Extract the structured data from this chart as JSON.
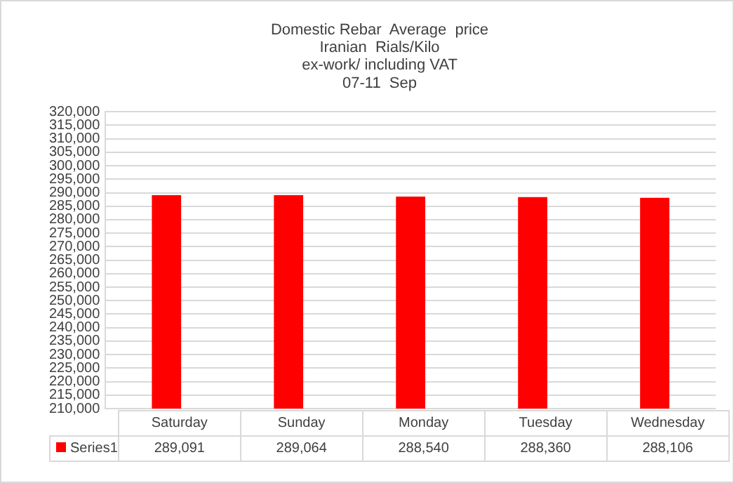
{
  "chart_data": {
    "type": "bar",
    "title": "Domestic Rebar  Average  price\nIranian  Rials/Kilo\nex-work/ including VAT\n07-11  Sep",
    "categories": [
      "Saturday",
      "Sunday",
      "Monday",
      "Tuesday",
      "Wednesday"
    ],
    "series": [
      {
        "name": "Series1",
        "color": "#ff0000",
        "values": [
          289091,
          289064,
          288540,
          288360,
          288106
        ],
        "value_labels": [
          "289,091",
          "289,064",
          "288,540",
          "288,360",
          "288,106"
        ]
      }
    ],
    "ylim": [
      210000,
      320000
    ],
    "yticks": [
      {
        "value": 210000,
        "label": "210,000"
      },
      {
        "value": 215000,
        "label": "215,000"
      },
      {
        "value": 220000,
        "label": "220,000"
      },
      {
        "value": 225000,
        "label": "225,000"
      },
      {
        "value": 230000,
        "label": "230,000"
      },
      {
        "value": 235000,
        "label": "235,000"
      },
      {
        "value": 240000,
        "label": "240,000"
      },
      {
        "value": 245000,
        "label": "245,000"
      },
      {
        "value": 250000,
        "label": "250,000"
      },
      {
        "value": 255000,
        "label": "255,000"
      },
      {
        "value": 260000,
        "label": "260,000"
      },
      {
        "value": 265000,
        "label": "265,000"
      },
      {
        "value": 270000,
        "label": "270,000"
      },
      {
        "value": 275000,
        "label": "275,000"
      },
      {
        "value": 280000,
        "label": "280,000"
      },
      {
        "value": 285000,
        "label": "285,000"
      },
      {
        "value": 290000,
        "label": "290,000"
      },
      {
        "value": 295000,
        "label": "295,000"
      },
      {
        "value": 300000,
        "label": "300,000"
      },
      {
        "value": 305000,
        "label": "305,000"
      },
      {
        "value": 310000,
        "label": "310,000"
      },
      {
        "value": 315000,
        "label": "315,000"
      },
      {
        "value": 320000,
        "label": "320,000"
      }
    ],
    "grid": "y",
    "legend": "bottom"
  }
}
